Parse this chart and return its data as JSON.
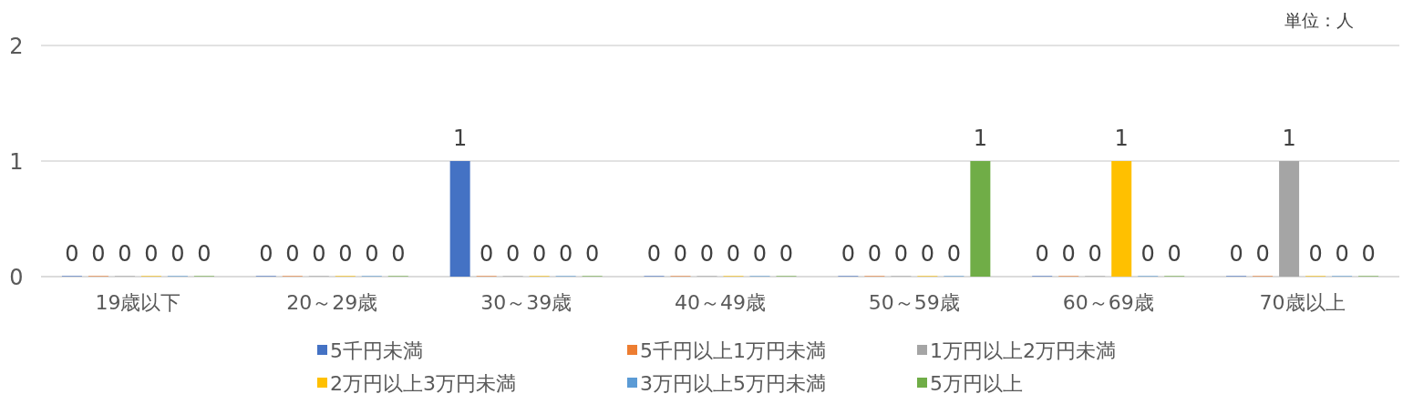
{
  "chart_data": {
    "type": "bar",
    "categories": [
      "19歳以下",
      "20～29歳",
      "30～39歳",
      "40～49歳",
      "50～59歳",
      "60～69歳",
      "70歳以上"
    ],
    "series": [
      {
        "name": "5千円未満",
        "color": "#4472c4",
        "values": [
          0,
          0,
          1,
          0,
          0,
          0,
          0
        ]
      },
      {
        "name": "5千円以上1万円未満",
        "color": "#ed7d31",
        "values": [
          0,
          0,
          0,
          0,
          0,
          0,
          0
        ]
      },
      {
        "name": "1万円以上2万円未満",
        "color": "#a5a5a5",
        "values": [
          0,
          0,
          0,
          0,
          0,
          0,
          1
        ]
      },
      {
        "name": "2万円以上3万円未満",
        "color": "#ffc000",
        "values": [
          0,
          0,
          0,
          0,
          0,
          1,
          0
        ]
      },
      {
        "name": "3万円以上5万円未満",
        "color": "#5b9bd5",
        "values": [
          0,
          0,
          0,
          0,
          0,
          0,
          0
        ]
      },
      {
        "name": "5万円以上",
        "color": "#70ad47",
        "values": [
          0,
          0,
          0,
          0,
          1,
          0,
          0
        ]
      }
    ],
    "ylim": [
      0,
      2
    ],
    "yticks": [
      0,
      1,
      2
    ],
    "grid": "y",
    "data_labels": true,
    "legend": "bottom",
    "annotations": [
      "単位：人"
    ]
  }
}
